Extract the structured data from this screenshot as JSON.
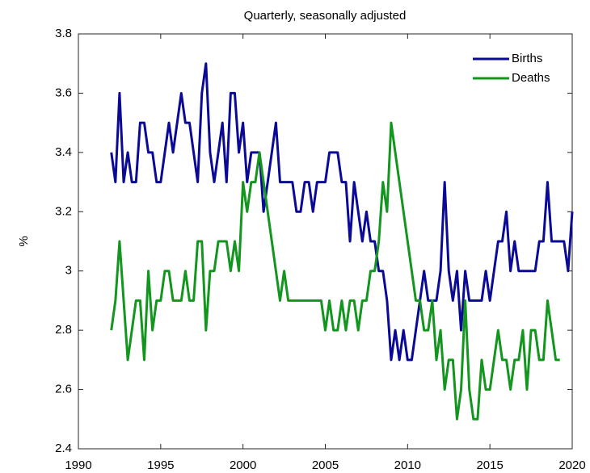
{
  "chart_data": {
    "type": "line",
    "title": "Quarterly, seasonally adjusted",
    "y_label": "%",
    "xlim": [
      1990,
      2020
    ],
    "xticks": [
      1990,
      1995,
      2000,
      2005,
      2010,
      2015,
      2020
    ],
    "ylim": [
      2.4,
      3.8
    ],
    "yticks": [
      2.4,
      2.6,
      2.8,
      3,
      3.2,
      3.4,
      3.6,
      3.8
    ],
    "legend": "top-right",
    "x": [
      1992,
      1992.25,
      1992.5,
      1992.75,
      1993,
      1993.25,
      1993.5,
      1993.75,
      1994,
      1994.25,
      1994.5,
      1994.75,
      1995,
      1995.25,
      1995.5,
      1995.75,
      1996,
      1996.25,
      1996.5,
      1996.75,
      1997,
      1997.25,
      1997.5,
      1997.75,
      1998,
      1998.25,
      1998.5,
      1998.75,
      1999,
      1999.25,
      1999.5,
      1999.75,
      2000,
      2000.25,
      2000.5,
      2000.75,
      2001,
      2001.25,
      2001.5,
      2001.75,
      2002,
      2002.25,
      2002.5,
      2002.75,
      2003,
      2003.25,
      2003.5,
      2003.75,
      2004,
      2004.25,
      2004.5,
      2004.75,
      2005,
      2005.25,
      2005.5,
      2005.75,
      2006,
      2006.25,
      2006.5,
      2006.75,
      2007,
      2007.25,
      2007.5,
      2007.75,
      2008,
      2008.25,
      2008.5,
      2008.75,
      2009,
      2009.25,
      2009.5,
      2009.75,
      2010,
      2010.25,
      2010.5,
      2010.75,
      2011,
      2011.25,
      2011.5,
      2011.75,
      2012,
      2012.25,
      2012.5,
      2012.75,
      2013,
      2013.25,
      2013.5,
      2013.75,
      2014,
      2014.25,
      2014.5,
      2014.75,
      2015,
      2015.25,
      2015.5,
      2015.75,
      2016,
      2016.25,
      2016.5,
      2016.75,
      2017,
      2017.25,
      2017.5,
      2017.75,
      2018,
      2018.25,
      2018.5,
      2018.75,
      2019,
      2019.25,
      2019.5,
      2019.75,
      2020
    ],
    "series": [
      {
        "name": "Births",
        "color": "#0a0a96",
        "values": [
          3.4,
          3.3,
          3.6,
          3.3,
          3.4,
          3.3,
          3.3,
          3.5,
          3.5,
          3.4,
          3.4,
          3.3,
          3.3,
          3.4,
          3.5,
          3.4,
          3.5,
          3.6,
          3.5,
          3.5,
          3.4,
          3.3,
          3.6,
          3.7,
          3.4,
          3.3,
          3.4,
          3.5,
          3.3,
          3.6,
          3.6,
          3.4,
          3.5,
          3.3,
          3.4,
          3.4,
          3.4,
          3.2,
          3.3,
          3.4,
          3.5,
          3.3,
          3.3,
          3.3,
          3.3,
          3.2,
          3.2,
          3.3,
          3.3,
          3.2,
          3.3,
          3.3,
          3.3,
          3.4,
          3.4,
          3.4,
          3.3,
          3.3,
          3.1,
          3.3,
          3.2,
          3.1,
          3.2,
          3.1,
          3.1,
          3.0,
          3.0,
          2.9,
          2.7,
          2.8,
          2.7,
          2.8,
          2.7,
          2.7,
          2.8,
          2.9,
          3.0,
          2.9,
          2.9,
          2.9,
          3.0,
          3.3,
          3.0,
          2.9,
          3.0,
          2.8,
          3.0,
          2.9,
          2.9,
          2.9,
          2.9,
          3.0,
          2.9,
          3.0,
          3.1,
          3.1,
          3.2,
          3.0,
          3.1,
          3.0,
          3.0,
          3.0,
          3.0,
          3.0,
          3.1,
          3.1,
          3.3,
          3.1,
          3.1,
          3.1,
          3.1,
          3.0,
          3.2
        ]
      },
      {
        "name": "Deaths",
        "color": "#12961e",
        "values": [
          2.8,
          2.9,
          3.1,
          2.9,
          2.7,
          2.8,
          2.9,
          2.9,
          2.7,
          3.0,
          2.8,
          2.9,
          2.9,
          3.0,
          3.0,
          2.9,
          2.9,
          2.9,
          3.0,
          2.9,
          2.9,
          3.1,
          3.1,
          2.8,
          3.0,
          3.0,
          3.1,
          3.1,
          3.1,
          3.0,
          3.1,
          3.0,
          3.3,
          3.2,
          3.3,
          3.3,
          3.4,
          3.3,
          3.2,
          3.1,
          3.0,
          2.9,
          3.0,
          2.9,
          2.9,
          2.9,
          2.9,
          2.9,
          2.9,
          2.9,
          2.9,
          2.9,
          2.8,
          2.9,
          2.8,
          2.8,
          2.9,
          2.8,
          2.9,
          2.9,
          2.8,
          2.9,
          2.9,
          3.0,
          3.0,
          3.1,
          3.3,
          3.2,
          3.5,
          3.4,
          3.3,
          3.2,
          3.1,
          3.0,
          2.9,
          2.9,
          2.8,
          2.8,
          2.9,
          2.7,
          2.8,
          2.6,
          2.7,
          2.7,
          2.5,
          2.6,
          2.9,
          2.6,
          2.5,
          2.5,
          2.7,
          2.6,
          2.6,
          2.7,
          2.8,
          2.7,
          2.7,
          2.6,
          2.7,
          2.7,
          2.8,
          2.6,
          2.8,
          2.8,
          2.7,
          2.7,
          2.9,
          2.8,
          2.7,
          2.7,
          null,
          null,
          null
        ]
      }
    ]
  }
}
